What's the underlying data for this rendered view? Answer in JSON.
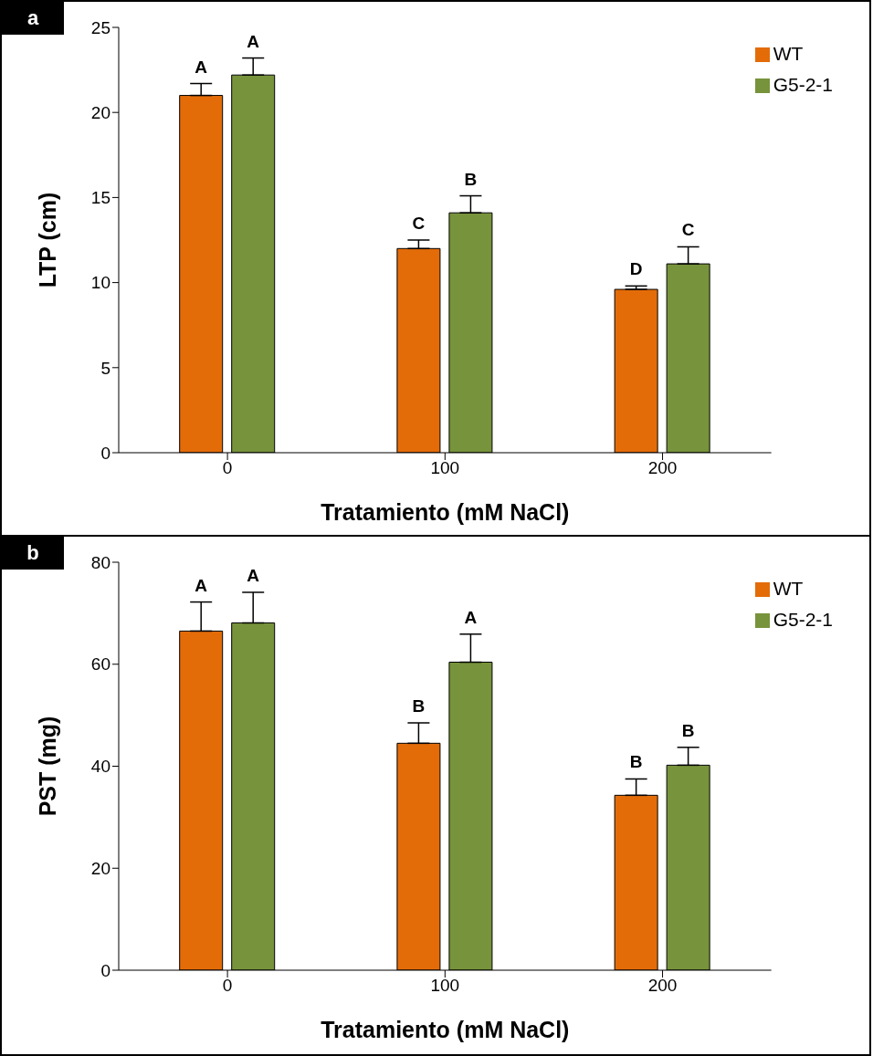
{
  "chart_data": [
    {
      "type": "bar",
      "categories": [
        "0",
        "100",
        "200"
      ],
      "xlabel": "Tratamiento (mM NaCl)",
      "ylabel": "LTP (cm)",
      "ylim": [
        0,
        25
      ],
      "yticks": [
        0,
        5,
        10,
        15,
        20,
        25
      ],
      "legend": "top right",
      "grid": false,
      "series": [
        {
          "name": "WT",
          "color": "#e36c09",
          "values": [
            21.0,
            12.0,
            9.6
          ],
          "errors": [
            0.7,
            0.5,
            0.2
          ]
        },
        {
          "name": "G5-2-1",
          "color": "#77933c",
          "values": [
            22.2,
            14.1,
            11.1
          ],
          "errors": [
            1.0,
            1.0,
            1.0
          ]
        }
      ],
      "annotations": [
        "a",
        {
          "text": "A",
          "x": "0",
          "y": 21.0
        },
        {
          "text": "A",
          "x": "0",
          "y": 22.2
        },
        {
          "text": "C",
          "x": "100",
          "y": 12.0
        },
        {
          "text": "B",
          "x": "100",
          "y": 14.1
        },
        {
          "text": "D",
          "x": "200",
          "y": 9.6
        },
        {
          "text": "C",
          "x": "200",
          "y": 11.1
        }
      ]
    },
    {
      "type": "bar",
      "categories": [
        "0",
        "100",
        "200"
      ],
      "xlabel": "Tratamiento (mM NaCl)",
      "ylabel": "PST (mg)",
      "ylim": [
        0,
        80
      ],
      "yticks": [
        0,
        20,
        40,
        60,
        80
      ],
      "legend": "top right",
      "grid": false,
      "series": [
        {
          "name": "WT",
          "color": "#e36c09",
          "values": [
            66.5,
            44.5,
            34.3
          ],
          "errors": [
            5.7,
            4.0,
            3.2
          ]
        },
        {
          "name": "G5-2-1",
          "color": "#77933c",
          "values": [
            68.1,
            60.4,
            40.2
          ],
          "errors": [
            6.0,
            5.5,
            3.5
          ]
        }
      ],
      "annotations": [
        "b",
        {
          "text": "A",
          "x": "0",
          "y": 66.5
        },
        {
          "text": "A",
          "x": "0",
          "y": 68.1
        },
        {
          "text": "B",
          "x": "100",
          "y": 44.5
        },
        {
          "text": "A",
          "x": "100",
          "y": 60.4
        },
        {
          "text": "B",
          "x": "200",
          "y": 34.3
        },
        {
          "text": "B",
          "x": "200",
          "y": 40.2
        }
      ]
    }
  ]
}
